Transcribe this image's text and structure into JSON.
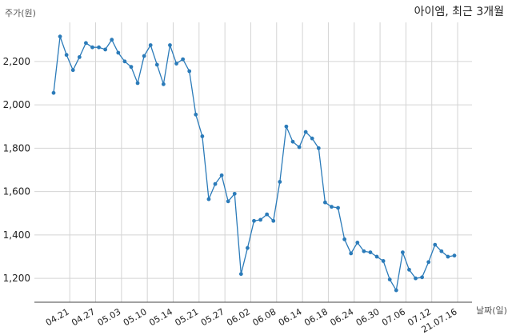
{
  "chart_data": {
    "type": "line",
    "title": "아이엠, 최근 3개월",
    "ylabel": "주가(원)",
    "xlabel": "날짜(일)",
    "ylim": [
      1090,
      2380
    ],
    "yticks": [
      1200,
      1400,
      1600,
      1800,
      2000,
      2200
    ],
    "ytick_labels": [
      "1,200",
      "1,400",
      "1,600",
      "1,800",
      "2,000",
      "2,200"
    ],
    "xtick_labels": [
      "04.21",
      "04.27",
      "05.03",
      "05.10",
      "05.14",
      "05.21",
      "05.27",
      "06.02",
      "06.08",
      "06.14",
      "06.18",
      "06.24",
      "06.30",
      "07.06",
      "07.12",
      "21.07.16"
    ],
    "xtick_positions": [
      2.5,
      6.5,
      10.5,
      14.5,
      18.5,
      22.5,
      26.5,
      30.5,
      34.5,
      38.5,
      42.5,
      46.5,
      50.5,
      54.5,
      58.5,
      62.5
    ],
    "grid": true,
    "series": [
      {
        "name": "",
        "color": "#2b7bb9",
        "values": [
          2055,
          2315,
          2230,
          2160,
          2220,
          2285,
          2265,
          2265,
          2255,
          2300,
          2240,
          2200,
          2175,
          2100,
          2225,
          2275,
          2185,
          2095,
          2275,
          2190,
          2210,
          2155,
          1955,
          1855,
          1565,
          1635,
          1675,
          1555,
          1590,
          1220,
          1340,
          1465,
          1470,
          1495,
          1465,
          1645,
          1900,
          1830,
          1805,
          1875,
          1845,
          1800,
          1550,
          1530,
          1525,
          1380,
          1315,
          1365,
          1325,
          1320,
          1300,
          1280,
          1195,
          1145,
          1320,
          1240,
          1200,
          1205,
          1275,
          1355,
          1325,
          1300,
          1305
        ]
      }
    ]
  }
}
